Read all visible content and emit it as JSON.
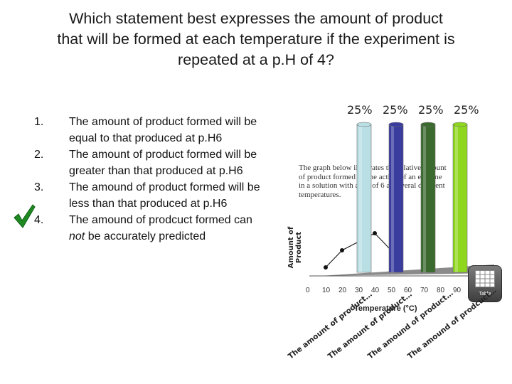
{
  "question": {
    "line1": "Which statement best expresses the amount of product",
    "line2": "that will be formed at each temperature if the experiment is",
    "line3": "repeated at a p.H of 4?"
  },
  "answers": [
    {
      "number": "1.",
      "text": "The amount of product formed will be equal to that produced at p.H6",
      "correct": false
    },
    {
      "number": "2.",
      "text": "The amount of product formed will be greater than that produced at p.H6",
      "correct": false
    },
    {
      "number": "3.",
      "text": "The amound of product formed will be less than that produced at p.H6",
      "correct": false
    },
    {
      "number": "4.",
      "text_before": "The amound of prodcuct formed can ",
      "text_em": "not",
      "text_after": " be accurately predicted",
      "correct": true
    }
  ],
  "poll": {
    "results": [
      "25%",
      "25%",
      "25%",
      "25%"
    ],
    "bar_colors": [
      "#b9dfe4",
      "#3a3d9e",
      "#3a6a2e",
      "#8fd61f"
    ],
    "bar_values": [
      25,
      25,
      25,
      25
    ],
    "response_labels": [
      "The amount of product…",
      "The amount of product…",
      "The amound of product…",
      "The amound of prodcuct…"
    ]
  },
  "figure": {
    "caption": [
      "The graph below illustrates the relative amount",
      "of product formed by the action of an enzyme",
      "in a solution with a pH of 6 at several different",
      "temperatures."
    ],
    "ylabel_line1": "Amount of",
    "ylabel_line2": "Product",
    "xlabel": "Temperature (°C)",
    "xticks": [
      "0",
      "10",
      "20",
      "30",
      "40",
      "50",
      "60",
      "70",
      "80",
      "90",
      "10"
    ],
    "table_button_label": "Table",
    "icons": {
      "table": "table-icon",
      "check": "check-icon"
    }
  },
  "chart_data": {
    "type": "line",
    "x": [
      10,
      20,
      40,
      50
    ],
    "xlabel": "Temperature (°C)",
    "ylabel": "Amount of Product",
    "xlim": [
      0,
      100
    ]
  }
}
